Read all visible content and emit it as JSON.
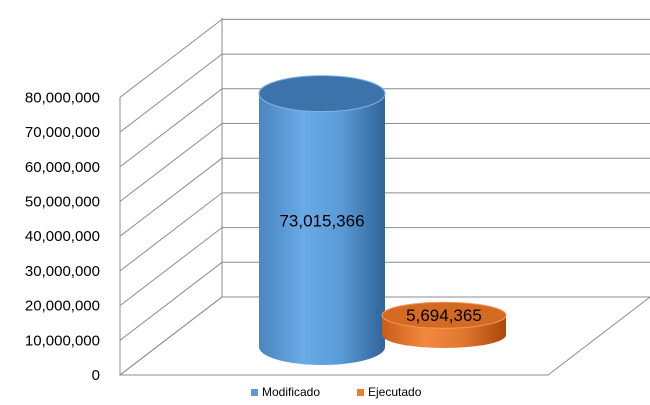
{
  "chart_data": {
    "type": "bar",
    "style": "3d-cylinder",
    "title": "",
    "xlabel": "",
    "ylabel": "",
    "ylim": [
      0,
      80000000
    ],
    "y_ticks": [
      "0",
      "10,000,000",
      "20,000,000",
      "30,000,000",
      "40,000,000",
      "50,000,000",
      "60,000,000",
      "70,000,000",
      "80,000,000"
    ],
    "grid": true,
    "legend_position": "bottom",
    "series": [
      {
        "name": "Modificado",
        "value": 73015366,
        "label": "73,015,366",
        "color": "#5b9bd5"
      },
      {
        "name": "Ejecutado",
        "value": 5694365,
        "label": "5,694,365",
        "color": "#ed7d31"
      }
    ]
  }
}
